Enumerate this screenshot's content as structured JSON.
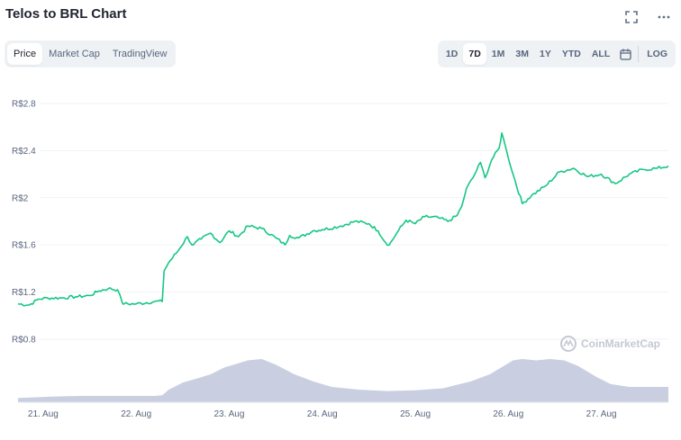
{
  "header": {
    "title": "Telos to BRL Chart"
  },
  "toolbar": {
    "fullscreen_icon": "expand-icon",
    "more_icon": "more-dots-icon",
    "view_tabs": [
      {
        "label": "Price",
        "active": true
      },
      {
        "label": "Market Cap",
        "active": false
      },
      {
        "label": "TradingView",
        "active": false
      }
    ],
    "range_tabs": [
      {
        "label": "1D",
        "active": false
      },
      {
        "label": "7D",
        "active": true
      },
      {
        "label": "1M",
        "active": false
      },
      {
        "label": "3M",
        "active": false
      },
      {
        "label": "1Y",
        "active": false
      },
      {
        "label": "YTD",
        "active": false
      },
      {
        "label": "ALL",
        "active": false
      }
    ],
    "calendar_icon": "calendar-icon",
    "log_label": "LOG"
  },
  "watermark": {
    "text": "CoinMarketCap",
    "icon": "coinmarketcap-logo-icon"
  },
  "colors": {
    "price_line": "#16c784",
    "volume_fill": "#c9cfe0",
    "grid": "#eff2f5",
    "text": "#58667e"
  },
  "chart_data": {
    "type": "line",
    "title": "Telos to BRL Chart",
    "y_ticks": [
      "R$2.8",
      "R$2.4",
      "R$2",
      "R$1.6",
      "R$1.2",
      "R$0.8"
    ],
    "y_tick_values": [
      2.8,
      2.4,
      2.0,
      1.6,
      1.2,
      0.8
    ],
    "ylim": [
      0.8,
      2.8
    ],
    "x_ticks": [
      "21. Aug",
      "22. Aug",
      "23. Aug",
      "24. Aug",
      "25. Aug",
      "26. Aug",
      "27. Aug"
    ],
    "x_tick_values": [
      0,
      1,
      2,
      3,
      4,
      5,
      6
    ],
    "xlim": [
      -0.27,
      6.72
    ],
    "grid": true,
    "series": [
      {
        "kind": "price",
        "x": [
          -0.27,
          -0.15,
          -0.05,
          0.05,
          0.2,
          0.35,
          0.5,
          0.6,
          0.7,
          0.8,
          0.85,
          0.87,
          1.0,
          1.2,
          1.28,
          1.3,
          1.35,
          1.45,
          1.55,
          1.6,
          1.7,
          1.8,
          1.9,
          2.0,
          2.1,
          2.2,
          2.35,
          2.5,
          2.6,
          2.65,
          2.75,
          2.9,
          3.0,
          3.2,
          3.35,
          3.5,
          3.6,
          3.68,
          3.72,
          3.8,
          3.9,
          4.0,
          4.1,
          4.25,
          4.35,
          4.45,
          4.5,
          4.55,
          4.62,
          4.7,
          4.75,
          4.82,
          4.9,
          4.93,
          4.98,
          5.05,
          5.15,
          5.25,
          5.4,
          5.55,
          5.7,
          5.85,
          6.0,
          6.15,
          6.3,
          6.45,
          6.6,
          6.72
        ],
        "y": [
          1.1,
          1.09,
          1.14,
          1.15,
          1.15,
          1.16,
          1.17,
          1.21,
          1.23,
          1.22,
          1.11,
          1.1,
          1.1,
          1.12,
          1.12,
          1.38,
          1.45,
          1.55,
          1.67,
          1.6,
          1.65,
          1.7,
          1.62,
          1.72,
          1.67,
          1.76,
          1.74,
          1.66,
          1.6,
          1.68,
          1.66,
          1.72,
          1.73,
          1.76,
          1.8,
          1.78,
          1.72,
          1.62,
          1.6,
          1.7,
          1.81,
          1.78,
          1.84,
          1.83,
          1.8,
          1.85,
          1.93,
          2.08,
          2.17,
          2.3,
          2.17,
          2.32,
          2.42,
          2.55,
          2.4,
          2.2,
          1.95,
          2.02,
          2.1,
          2.22,
          2.25,
          2.18,
          2.2,
          2.12,
          2.2,
          2.24,
          2.25,
          2.27
        ]
      },
      {
        "kind": "volume",
        "x": [
          -0.27,
          -0.1,
          0.1,
          0.4,
          0.8,
          1.2,
          1.28,
          1.35,
          1.5,
          1.65,
          1.8,
          1.95,
          2.05,
          2.2,
          2.35,
          2.5,
          2.7,
          2.9,
          3.1,
          3.4,
          3.7,
          4.0,
          4.3,
          4.6,
          4.8,
          4.95,
          5.05,
          5.15,
          5.3,
          5.45,
          5.6,
          5.75,
          5.95,
          6.1,
          6.3,
          6.5,
          6.72
        ],
        "y": [
          3,
          3.5,
          4,
          4.5,
          4.5,
          4.5,
          5,
          9,
          14,
          17,
          20,
          25,
          27,
          30,
          31,
          27,
          20,
          15,
          11,
          9,
          8,
          8.5,
          10,
          15,
          20,
          26,
          30,
          31,
          30,
          31,
          30,
          26,
          18,
          13,
          11,
          11,
          11
        ]
      }
    ]
  }
}
